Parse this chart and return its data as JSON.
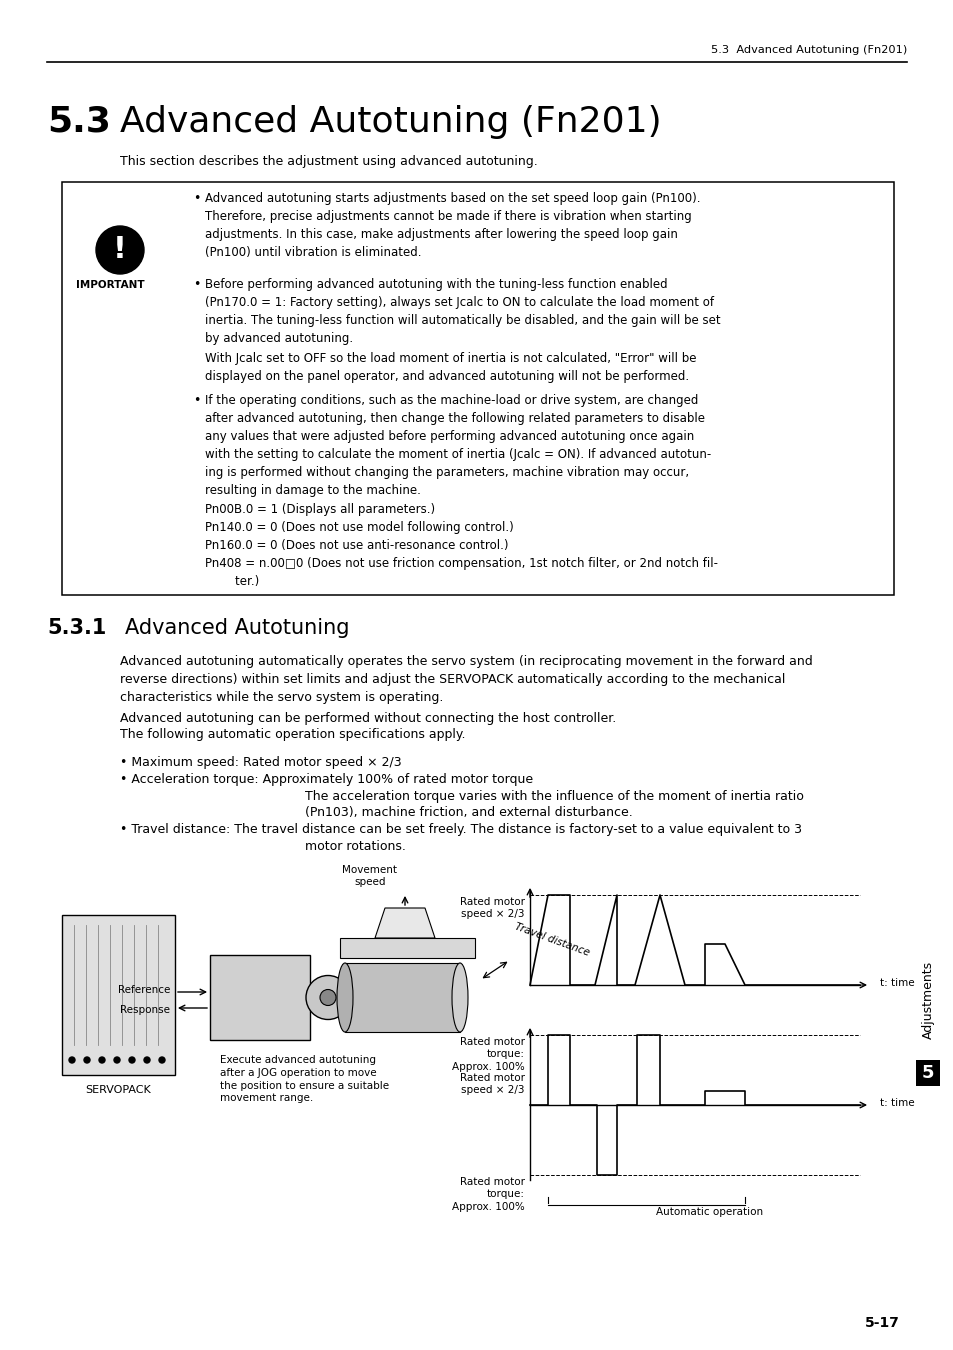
{
  "page_header": "5.3  Advanced Autotuning (Fn201)",
  "section_title_num": "5.3",
  "section_title": "Advanced Autotuning (Fn201)",
  "intro_text": "This section describes the adjustment using advanced autotuning.",
  "b1": "Advanced autotuning starts adjustments based on the set speed loop gain (Pn100).\nTherefore, precise adjustments cannot be made if there is vibration when starting\nadjustments. In this case, make adjustments after lowering the speed loop gain\n(Pn100) until vibration is eliminated.",
  "b2a": "Before performing advanced autotuning with the tuning-less function enabled\n(Pn170.0 = 1: Factory setting), always set Jcalc to ON to calculate the load moment of\ninertia. The tuning-less function will automatically be disabled, and the gain will be set\nby advanced autotuning.",
  "b2b": "With Jcalc set to OFF so the load moment of inertia is not calculated, \"Error\" will be\ndisplayed on the panel operator, and advanced autotuning will not be performed.",
  "b3": "If the operating conditions, such as the machine-load or drive system, are changed\nafter advanced autotuning, then change the following related parameters to disable\nany values that were adjusted before performing advanced autotuning once again\nwith the setting to calculate the moment of inertia (Jcalc = ON). If advanced autotun-\ning is performed without changing the parameters, machine vibration may occur,\nresulting in damage to the machine.",
  "p1": "Pn00B.0 = 1 (Displays all parameters.)",
  "p2": "Pn140.0 = 0 (Does not use model following control.)",
  "p3": "Pn160.0 = 0 (Does not use anti-resonance control.)",
  "p4": "Pn408 = n.00□0 (Does not use friction compensation, 1st notch filter, or 2nd notch fil-\n        ter.)",
  "subsection_num": "5.3.1",
  "subsection_title": "Advanced Autotuning",
  "body1": "Advanced autotuning automatically operates the servo system (in reciprocating movement in the forward and\nreverse directions) within set limits and adjust the SERVOPACK automatically according to the mechanical\ncharacteristics while the servo system is operating.",
  "body2a": "Advanced autotuning can be performed without connecting the host controller.",
  "body2b": "The following automatic operation specifications apply.",
  "bspec1": "• Maximum speed: Rated motor speed × 2/3",
  "bspec2a": "• Acceleration torque: Approximately 100% of rated motor torque",
  "bspec2b": "The acceleration torque varies with the influence of the moment of inertia ratio",
  "bspec2c": "(Pn103), machine friction, and external disturbance.",
  "bspec3a": "• Travel distance: The travel distance can be set freely. The distance is factory-set to a value equivalent to 3",
  "bspec3b": "motor rotations.",
  "movement_speed_label": "Movement\nspeed",
  "reference_label": "Reference",
  "response_label": "Response",
  "travel_distance_label": "Travel distance",
  "execute_text": "Execute advanced autotuning\nafter a JOG operation to move\nthe position to ensure a suitable\nmovement range.",
  "servopack_label": "SERVOPACK",
  "rated_motor_speed": "Rated motor\nspeed × 2/3",
  "rated_motor_speed2": "Rated motor\nspeed × 2/3",
  "rated_motor_torque_pos": "Rated motor\ntorque:\nApprox. 100%",
  "rated_motor_torque_neg": "Rated motor\ntorque:\nApprox. 100%",
  "t_time": "t: time",
  "auto_op": "Automatic operation",
  "sidebar_text": "Adjustments",
  "sidebar_num": "5",
  "page_num": "5-17",
  "bg_color": "#ffffff"
}
